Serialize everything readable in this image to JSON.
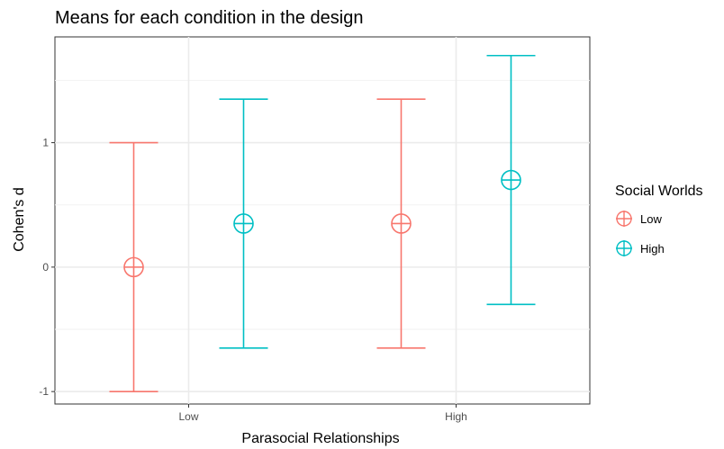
{
  "chart_data": {
    "type": "errorbar",
    "title": "Means for each condition in the design",
    "xlabel": "Parasocial Relationships",
    "ylabel": "Cohen's d",
    "categories": [
      "Low",
      "High"
    ],
    "ylim": [
      -1.1,
      1.85
    ],
    "yticks": [
      -1,
      0,
      1
    ],
    "ytick_labels": [
      "-1",
      "0",
      "1"
    ],
    "grid": true,
    "legend": {
      "title": "Social Worlds",
      "position": "right"
    },
    "series": [
      {
        "name": "Low",
        "color": "#F8766D",
        "points": [
          {
            "x": "Low",
            "mean": 0.0,
            "lower": -1.0,
            "upper": 1.0
          },
          {
            "x": "High",
            "mean": 0.35,
            "lower": -0.65,
            "upper": 1.35
          }
        ]
      },
      {
        "name": "High",
        "color": "#00BFC4",
        "points": [
          {
            "x": "Low",
            "mean": 0.35,
            "lower": -0.65,
            "upper": 1.35
          },
          {
            "x": "High",
            "mean": 0.7,
            "lower": -0.3,
            "upper": 1.7
          }
        ]
      }
    ]
  }
}
